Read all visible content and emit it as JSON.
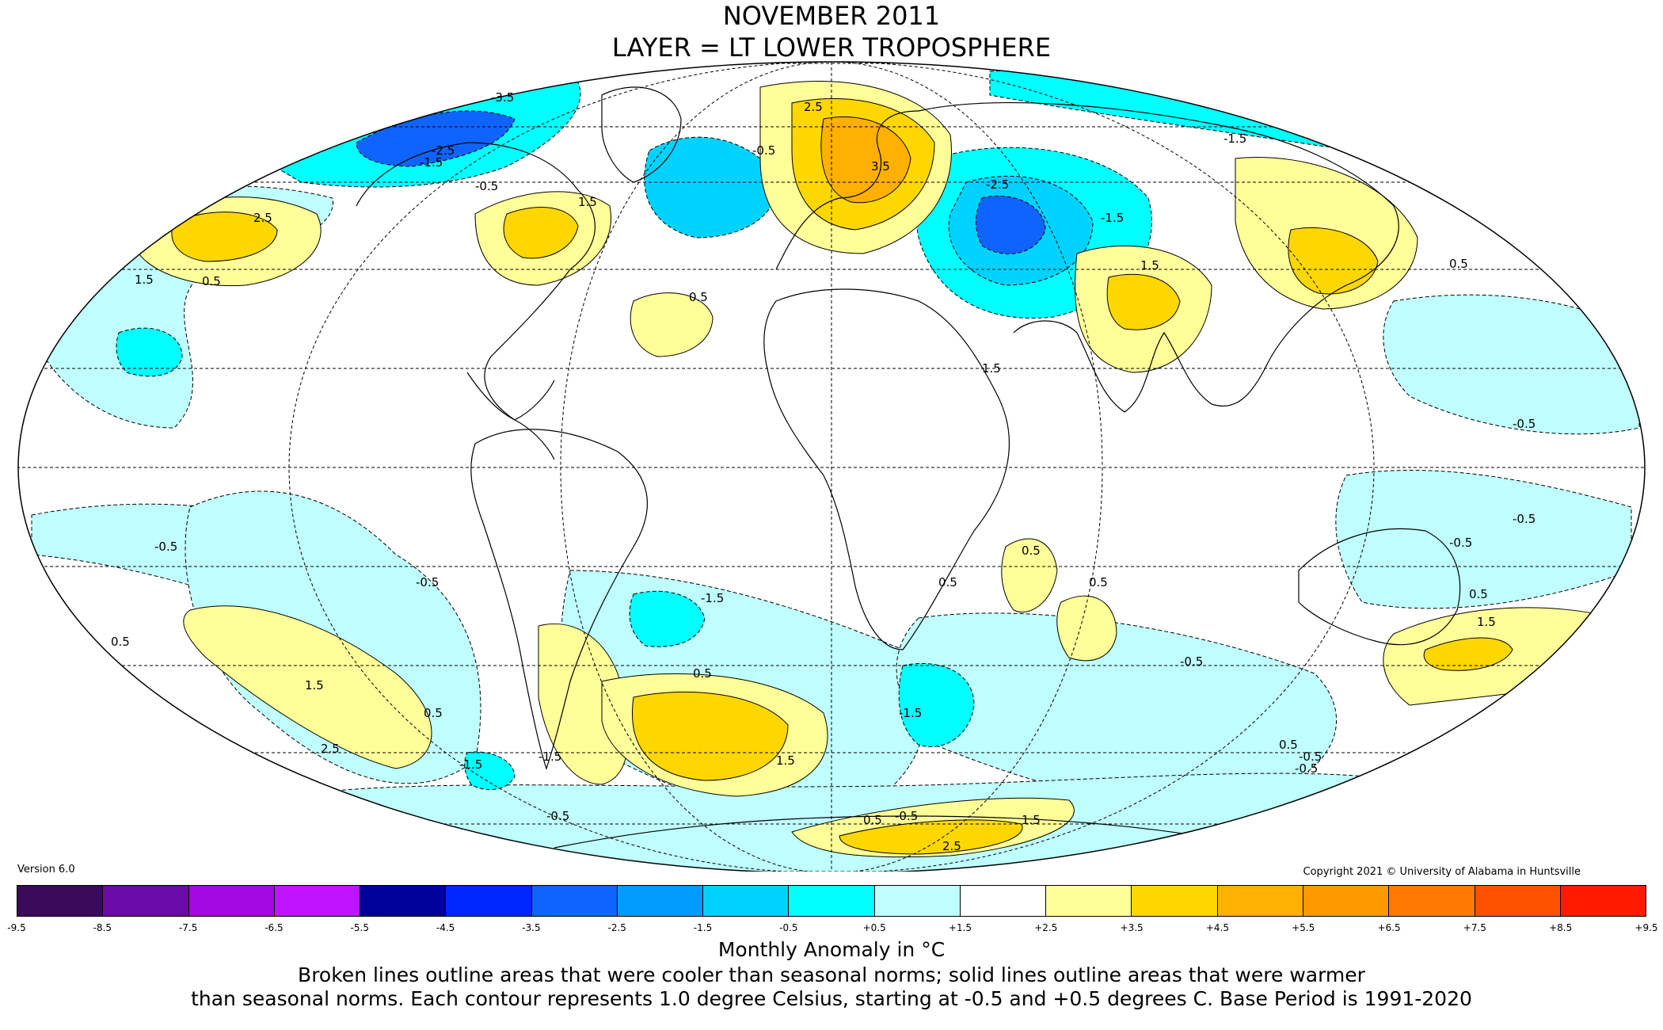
{
  "title_line1": "NOVEMBER 2011",
  "title_line2": "LAYER = LT LOWER TROPOSPHERE",
  "version": "Version 6.0",
  "copyright": "Copyright 2021 © University of Alabama in Huntsville",
  "colorbar": {
    "label": "Monthly Anomaly in °C",
    "ticks": [
      "-9.5",
      "-8.5",
      "-7.5",
      "-6.5",
      "-5.5",
      "-4.5",
      "-3.5",
      "-2.5",
      "-1.5",
      "-0.5",
      "+0.5",
      "+1.5",
      "+2.5",
      "+3.5",
      "+4.5",
      "+5.5",
      "+6.5",
      "+7.5",
      "+8.5",
      "+9.5"
    ],
    "colors": [
      "#3c0a5a",
      "#6a0aa8",
      "#a10ae0",
      "#c014ff",
      "#00009a",
      "#0026ff",
      "#0f64ff",
      "#009bff",
      "#00d2ff",
      "#00ffff",
      "#c0ffff",
      "#ffffff",
      "#ffff99",
      "#ffd700",
      "#ffb000",
      "#ff9900",
      "#ff7a00",
      "#ff5200",
      "#ff1a00",
      "#c80000",
      "#a00000"
    ]
  },
  "footnote_line1": "Broken lines outline areas that were cooler than seasonal norms; solid lines outline areas that were warmer",
  "footnote_line2": "than seasonal norms. Each contour represents 1.0 degree Celsius, starting at -0.5 and +0.5 degrees C. Base Period is 1991-2020",
  "contour_labels": [
    "-3.5",
    "-2.5",
    "-1.5",
    "-0.5",
    "0.5",
    "1.5",
    "2.5",
    "3.5",
    "-2.5",
    "-1.5",
    "-0.5",
    "0.5",
    "1.5",
    "2.5",
    "-1.5",
    "-0.5",
    "0.5",
    "1.5",
    "2.5",
    "0.5",
    "-0.5",
    "-1.5",
    "0.5",
    "-0.5",
    "1.5",
    "0.5",
    "-0.5",
    "-1.5",
    "0.5",
    "1.5",
    "-0.5",
    "0.5",
    "1.5",
    "-1.5",
    "-0.5",
    "0.5",
    "2.5",
    "1.5",
    "-0.5",
    "-1.5",
    "0.5",
    "-0.5",
    "0.5",
    "1.5",
    "-0.5",
    "-0.5",
    "0.5"
  ]
}
